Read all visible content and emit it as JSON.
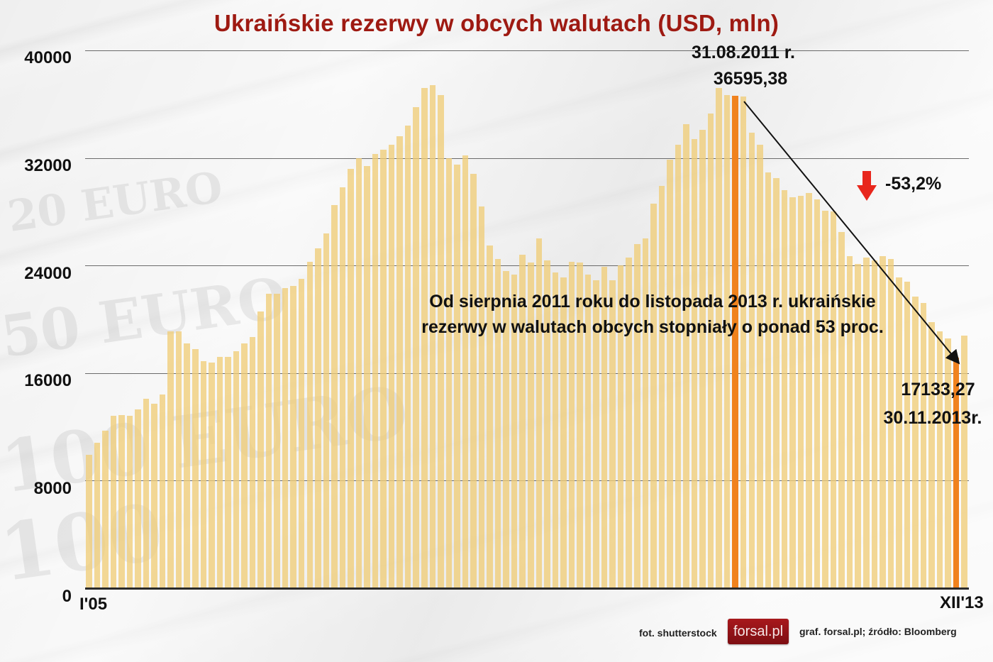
{
  "title": "Ukraińskie rezerwy w obcych walutach (USD, mln)",
  "y_axis": {
    "ticks": [
      "40000",
      "32000",
      "24000",
      "16000",
      "8000",
      "0"
    ],
    "tick_values": [
      40000,
      32000,
      24000,
      16000,
      8000,
      0
    ]
  },
  "x_axis": {
    "start_label": "I'05",
    "end_label": "XII'13"
  },
  "annotations": {
    "peak_date": "31.08.2011 r.",
    "peak_value": "36595,38",
    "end_value": "17133,27",
    "end_date": "30.11.2013r.",
    "change_pct": "-53,2%",
    "note_line1": "Od sierpnia 2011 roku do listopada 2013 r. ukraińskie",
    "note_line2": "rezerwy w walutach obcych stopniały o ponad 53 proc."
  },
  "footer": {
    "photo_credit": "fot. shutterstock",
    "logo_text": "forsal.pl",
    "source": "graf. forsal.pl;  źródło: Bloomberg"
  },
  "colors": {
    "title": "#9e1a12",
    "bar": "#f0cd78",
    "bar_highlight": "#f0821e",
    "arrow_down": "#e8261c"
  },
  "chart_data": {
    "type": "bar",
    "title": "Ukraińskie rezerwy w obcych walutach (USD, mln)",
    "xlabel": "",
    "ylabel": "USD, mln",
    "ylim": [
      0,
      40000
    ],
    "grid": true,
    "x_range_labels": [
      "I'05",
      "XII'13"
    ],
    "categories": [
      "2005-01",
      "2005-02",
      "2005-03",
      "2005-04",
      "2005-05",
      "2005-06",
      "2005-07",
      "2005-08",
      "2005-09",
      "2005-10",
      "2005-11",
      "2005-12",
      "2006-01",
      "2006-02",
      "2006-03",
      "2006-04",
      "2006-05",
      "2006-06",
      "2006-07",
      "2006-08",
      "2006-09",
      "2006-10",
      "2006-11",
      "2006-12",
      "2007-01",
      "2007-02",
      "2007-03",
      "2007-04",
      "2007-05",
      "2007-06",
      "2007-07",
      "2007-08",
      "2007-09",
      "2007-10",
      "2007-11",
      "2007-12",
      "2008-01",
      "2008-02",
      "2008-03",
      "2008-04",
      "2008-05",
      "2008-06",
      "2008-07",
      "2008-08",
      "2008-09",
      "2008-10",
      "2008-11",
      "2008-12",
      "2009-01",
      "2009-02",
      "2009-03",
      "2009-04",
      "2009-05",
      "2009-06",
      "2009-07",
      "2009-08",
      "2009-09",
      "2009-10",
      "2009-11",
      "2009-12",
      "2010-01",
      "2010-02",
      "2010-03",
      "2010-04",
      "2010-05",
      "2010-06",
      "2010-07",
      "2010-08",
      "2010-09",
      "2010-10",
      "2010-11",
      "2010-12",
      "2011-01",
      "2011-02",
      "2011-03",
      "2011-04",
      "2011-05",
      "2011-06",
      "2011-07",
      "2011-08",
      "2011-09",
      "2011-10",
      "2011-11",
      "2011-12",
      "2012-01",
      "2012-02",
      "2012-03",
      "2012-04",
      "2012-05",
      "2012-06",
      "2012-07",
      "2012-08",
      "2012-09",
      "2012-10",
      "2012-11",
      "2012-12",
      "2013-01",
      "2013-02",
      "2013-03",
      "2013-04",
      "2013-05",
      "2013-06",
      "2013-07",
      "2013-08",
      "2013-09",
      "2013-10",
      "2013-11",
      "2013-12"
    ],
    "values": [
      9900,
      10800,
      11700,
      12800,
      12900,
      12800,
      13300,
      14100,
      13700,
      14400,
      19100,
      19100,
      18200,
      17800,
      16900,
      16800,
      17200,
      17200,
      17600,
      18200,
      18700,
      20600,
      21900,
      21900,
      22300,
      22500,
      23000,
      24300,
      25300,
      26400,
      28500,
      29800,
      31200,
      32000,
      31400,
      32300,
      32600,
      33000,
      33600,
      34400,
      35800,
      37200,
      37400,
      36700,
      32000,
      31500,
      32200,
      30800,
      28400,
      25500,
      24500,
      23600,
      23300,
      24800,
      24200,
      26000,
      24400,
      23500,
      23100,
      24300,
      24200,
      23300,
      22900,
      23900,
      22900,
      24000,
      24600,
      25600,
      26000,
      28600,
      29900,
      31900,
      33000,
      34500,
      33400,
      34100,
      35300,
      37200,
      36700,
      36600,
      36595,
      33900,
      33000,
      30900,
      30500,
      29600,
      29100,
      29200,
      29400,
      28900,
      28100,
      28000,
      26500,
      24700,
      24100,
      24600,
      24400,
      24700,
      24500,
      23100,
      22800,
      21700,
      21200,
      19800,
      19100,
      18600,
      17133,
      18800
    ],
    "highlighted": [
      {
        "category": "2011-08",
        "label": "31.08.2011 r.",
        "value": 36595.38
      },
      {
        "category": "2013-11",
        "label": "30.11.2013r.",
        "value": 17133.27
      }
    ],
    "annotations": [
      "-53,2%",
      "Od sierpnia 2011 roku do listopada 2013 r. ukraińskie rezerwy w walutach obcych stopniały o ponad 53 proc."
    ]
  }
}
